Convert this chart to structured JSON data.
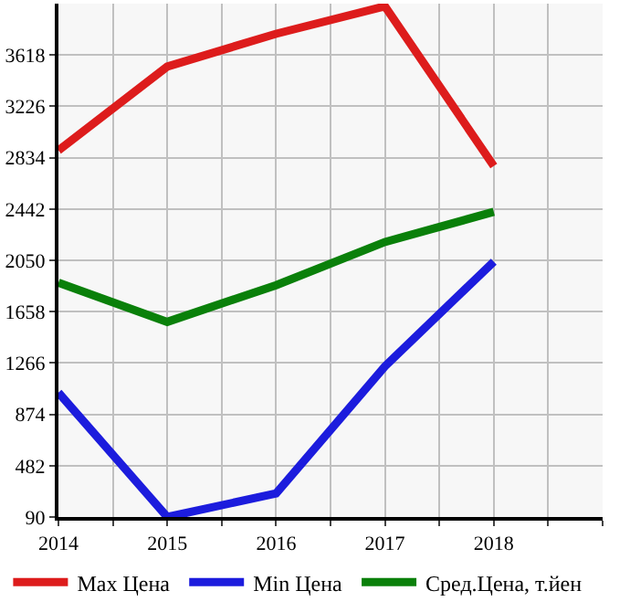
{
  "chart_data": {
    "type": "line",
    "x": [
      2014,
      2015,
      2016,
      2017,
      2018
    ],
    "series": [
      {
        "name": "Max Цена",
        "color": "#dd1c1c",
        "values": [
          2890,
          3530,
          3780,
          3990,
          2770
        ]
      },
      {
        "name": "Min Цена",
        "color": "#1c1cdd",
        "values": [
          1040,
          90,
          270,
          1240,
          2040
        ]
      },
      {
        "name": "Сред.Цена, т.йен",
        "color": "#0a800a",
        "values": [
          1880,
          1580,
          1860,
          2190,
          2420
        ]
      }
    ],
    "xlim": [
      2014,
      2019
    ],
    "xticks": [
      2014,
      {
        "value": 2014.5,
        "label": null
      },
      2015,
      {
        "value": 2015.5,
        "label": null
      },
      2016,
      {
        "value": 2016.5,
        "label": null
      },
      2017,
      {
        "value": 2017.5,
        "label": null
      },
      2018,
      {
        "value": 2018.5,
        "label": null
      },
      {
        "value": 2019,
        "label": null
      }
    ],
    "ylim": [
      90,
      4010
    ],
    "yticks": [
      90,
      482,
      874,
      1266,
      1658,
      2050,
      2442,
      2834,
      3226,
      3618
    ],
    "grid": true,
    "legend": "bottom",
    "marker": "none",
    "line_style": "solid"
  }
}
